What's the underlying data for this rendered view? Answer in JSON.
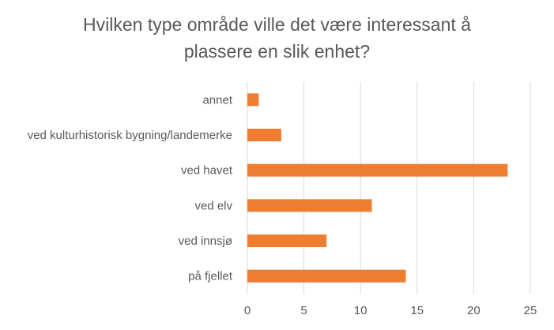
{
  "chart_data": {
    "type": "bar",
    "orientation": "horizontal",
    "title_lines": [
      "Hvilken type område ville det være interessant å",
      "plassere en slik enhet?"
    ],
    "categories": [
      "annet",
      "ved kulturhistorisk bygning/landemerke",
      "ved havet",
      "ved elv",
      "ved innsjø",
      "på fjellet"
    ],
    "values": [
      1,
      3,
      23,
      11,
      7,
      14
    ],
    "xlim": [
      0,
      25
    ],
    "xticks": [
      "0",
      "5",
      "10",
      "15",
      "20",
      "25"
    ],
    "grid": "vertical",
    "legend": "none",
    "bar_color": "#ED7D31",
    "grid_color": "#D9D9D9",
    "text_color": "#595959"
  }
}
